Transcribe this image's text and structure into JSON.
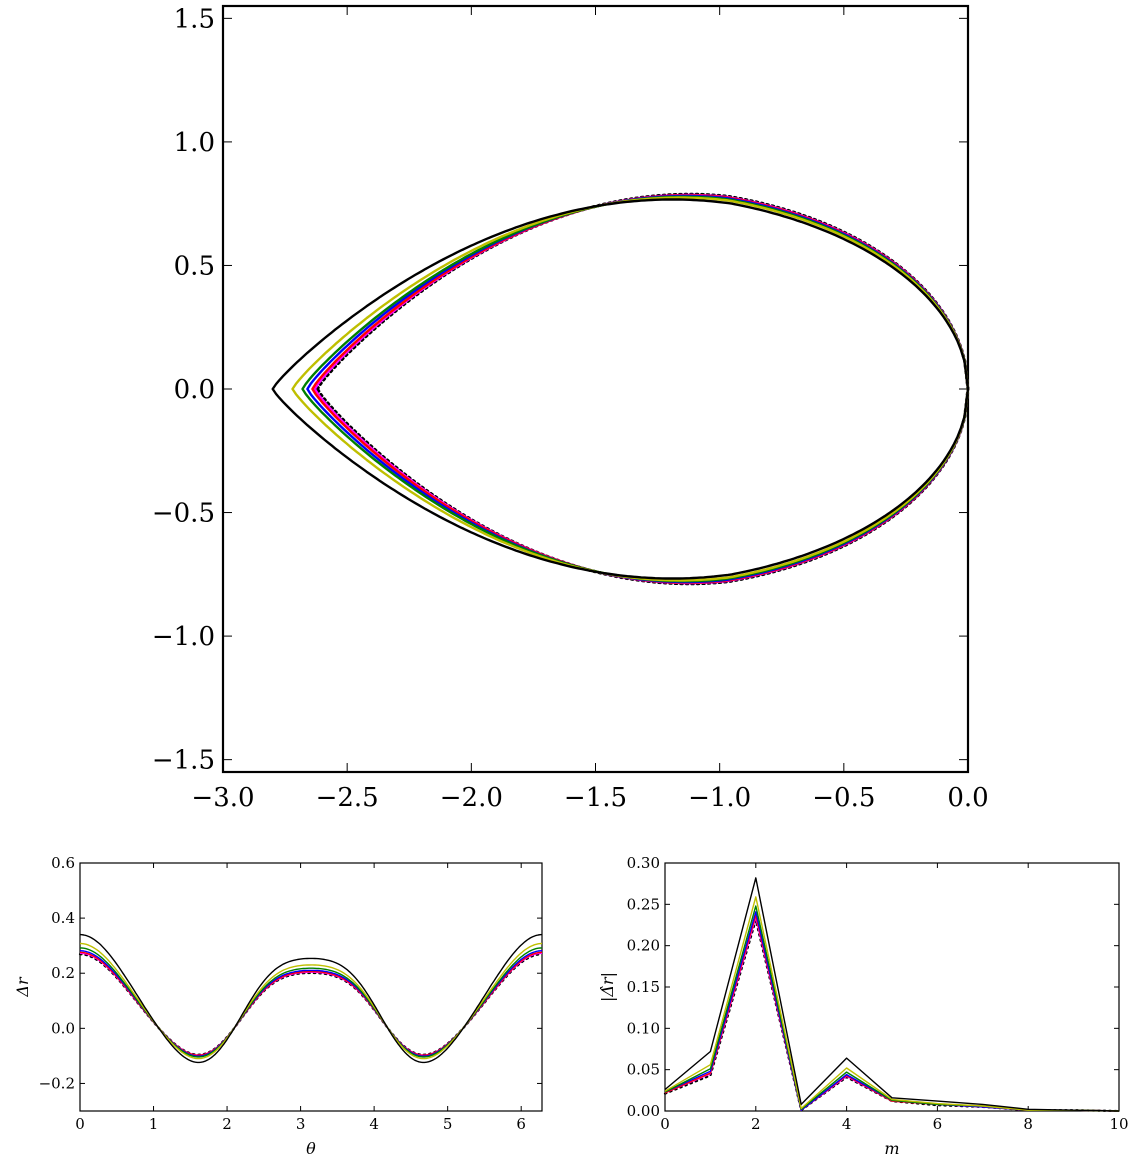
{
  "chart_data": [
    {
      "type": "line",
      "panel": "main",
      "xlabel": "",
      "ylabel": "",
      "xlim": [
        -3.0,
        0.0
      ],
      "ylim": [
        -1.55,
        1.55
      ],
      "xticks": [
        "−3.0",
        "−2.5",
        "−2.0",
        "−1.5",
        "−1.0",
        "−0.5",
        "0.0"
      ],
      "yticks": [
        "−1.5",
        "−1.0",
        "−0.5",
        "0.0",
        "0.5",
        "1.0",
        "1.5"
      ],
      "grid": false,
      "series": [
        {
          "color": "#000000",
          "style": "dotted",
          "x_left": -2.62,
          "x_right": 0.0,
          "x_peak": -0.97,
          "y_peak": 0.78
        },
        {
          "color": "#ff00ff",
          "style": "solid",
          "x_left": -2.63,
          "x_right": 0.0,
          "x_peak": -0.97,
          "y_peak": 0.777
        },
        {
          "color": "#ff0000",
          "style": "solid",
          "x_left": -2.64,
          "x_right": 0.0,
          "x_peak": -0.97,
          "y_peak": 0.775
        },
        {
          "color": "#0000ff",
          "style": "solid",
          "x_left": -2.66,
          "x_right": 0.0,
          "x_peak": -0.97,
          "y_peak": 0.772
        },
        {
          "color": "#007f00",
          "style": "solid",
          "x_left": -2.68,
          "x_right": 0.0,
          "x_peak": -0.97,
          "y_peak": 0.768
        },
        {
          "color": "#bfbf00",
          "style": "solid",
          "x_left": -2.72,
          "x_right": 0.0,
          "x_peak": -0.96,
          "y_peak": 0.762
        },
        {
          "color": "#000000",
          "style": "solid",
          "x_left": -2.8,
          "x_right": 0.0,
          "x_peak": -0.95,
          "y_peak": 0.75
        }
      ]
    },
    {
      "type": "line",
      "panel": "bottom-left",
      "xlabel": "θ",
      "ylabel": "Δr",
      "xlim": [
        0,
        6.283
      ],
      "ylim": [
        -0.3,
        0.6
      ],
      "xticks": [
        "0",
        "1",
        "2",
        "3",
        "4",
        "5",
        "6"
      ],
      "yticks": [
        "−0.2",
        "0.0",
        "0.2",
        "0.4",
        "0.6"
      ],
      "grid": false,
      "series": [
        {
          "color": "#000000",
          "style": "dotted",
          "a0": 0.081,
          "a2": 0.165,
          "a4": -0.011
        },
        {
          "color": "#ff00ff",
          "style": "solid",
          "a0": 0.082,
          "a2": 0.167,
          "a4": -0.011
        },
        {
          "color": "#ff0000",
          "style": "solid",
          "a0": 0.083,
          "a2": 0.169,
          "a4": -0.011
        },
        {
          "color": "#0000ff",
          "style": "solid",
          "a0": 0.085,
          "a2": 0.173,
          "a4": -0.012
        },
        {
          "color": "#007f00",
          "style": "solid",
          "a0": 0.088,
          "a2": 0.179,
          "a4": -0.012
        },
        {
          "color": "#bfbf00",
          "style": "solid",
          "a0": 0.093,
          "a2": 0.189,
          "a4": -0.013
        },
        {
          "color": "#000000",
          "style": "solid",
          "a0": 0.102,
          "a2": 0.21,
          "a4": -0.015
        }
      ]
    },
    {
      "type": "line",
      "panel": "bottom-right",
      "xlabel": "m",
      "ylabel": "|Δ̂r|",
      "xlim": [
        0,
        10
      ],
      "ylim": [
        0,
        0.3
      ],
      "xticks": [
        "0",
        "2",
        "4",
        "6",
        "8",
        "10"
      ],
      "yticks": [
        "0.00",
        "0.05",
        "0.10",
        "0.15",
        "0.20",
        "0.25",
        "0.30"
      ],
      "grid": false,
      "x": [
        0,
        1,
        2,
        3,
        4,
        5,
        6,
        7,
        8,
        9,
        10
      ],
      "series": [
        {
          "color": "#000000",
          "style": "dotted",
          "values": [
            0.021,
            0.043,
            0.231,
            0.001,
            0.041,
            0.012,
            0.007,
            0.005,
            0.001,
            0.001,
            0.0
          ]
        },
        {
          "color": "#ff00ff",
          "style": "solid",
          "values": [
            0.022,
            0.045,
            0.234,
            0.001,
            0.042,
            0.012,
            0.008,
            0.005,
            0.001,
            0.001,
            0.0
          ]
        },
        {
          "color": "#ff0000",
          "style": "solid",
          "values": [
            0.022,
            0.046,
            0.237,
            0.001,
            0.043,
            0.012,
            0.008,
            0.005,
            0.001,
            0.001,
            0.0
          ]
        },
        {
          "color": "#0000ff",
          "style": "solid",
          "values": [
            0.023,
            0.048,
            0.241,
            0.001,
            0.044,
            0.013,
            0.008,
            0.005,
            0.001,
            0.001,
            0.0
          ]
        },
        {
          "color": "#007f00",
          "style": "solid",
          "values": [
            0.023,
            0.051,
            0.248,
            0.002,
            0.047,
            0.013,
            0.008,
            0.006,
            0.001,
            0.001,
            0.0
          ]
        },
        {
          "color": "#bfbf00",
          "style": "solid",
          "values": [
            0.024,
            0.056,
            0.259,
            0.003,
            0.052,
            0.014,
            0.009,
            0.006,
            0.001,
            0.001,
            0.0
          ]
        },
        {
          "color": "#000000",
          "style": "solid",
          "values": [
            0.026,
            0.072,
            0.282,
            0.008,
            0.064,
            0.016,
            0.012,
            0.008,
            0.002,
            0.001,
            0.0
          ]
        }
      ]
    }
  ]
}
